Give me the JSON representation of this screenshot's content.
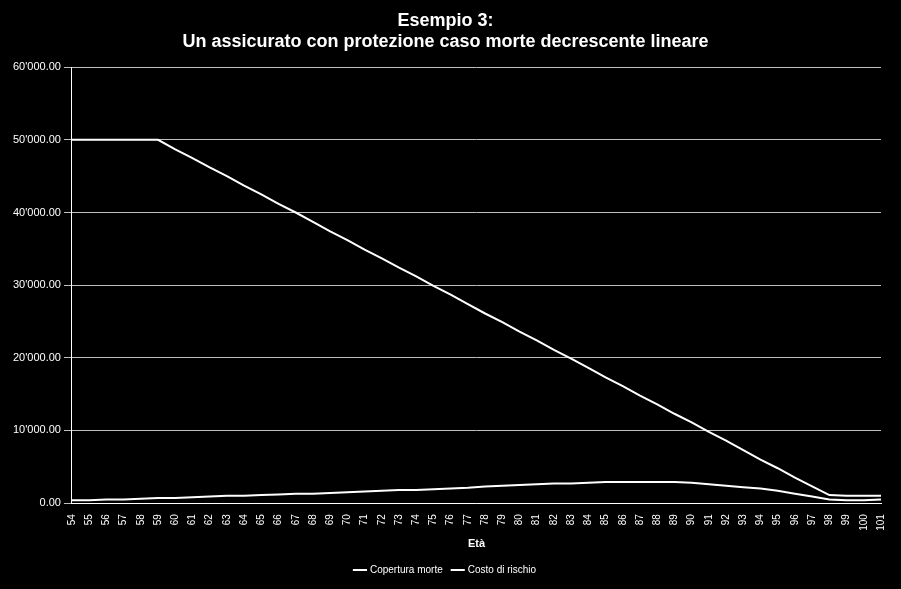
{
  "chart_data": {
    "type": "line",
    "title": [
      "Esempio 3:",
      "Un assicurato con protezione caso morte decrescente lineare"
    ],
    "x_label": "Età",
    "categories": [
      "54",
      "55",
      "56",
      "57",
      "58",
      "59",
      "60",
      "61",
      "62",
      "63",
      "64",
      "65",
      "66",
      "67",
      "68",
      "69",
      "70",
      "71",
      "72",
      "73",
      "74",
      "75",
      "76",
      "77",
      "78",
      "79",
      "80",
      "81",
      "82",
      "83",
      "84",
      "85",
      "86",
      "87",
      "88",
      "89",
      "90",
      "91",
      "92",
      "93",
      "94",
      "95",
      "96",
      "97",
      "98",
      "99",
      "100",
      "101"
    ],
    "series": [
      {
        "name": "Copertura morte",
        "color": "#ffffff",
        "values": [
          50000,
          50000,
          50000,
          50000,
          50000,
          50000,
          48700,
          47500,
          46200,
          45000,
          43700,
          42500,
          41200,
          40000,
          38700,
          37400,
          36200,
          34900,
          33700,
          32400,
          31200,
          29900,
          28700,
          27400,
          26100,
          24900,
          23600,
          22400,
          21100,
          19900,
          18600,
          17300,
          16100,
          14800,
          13600,
          12300,
          11100,
          9800,
          8600,
          7300,
          6000,
          4800,
          3500,
          2300,
          1100,
          1000,
          1000,
          1000
        ]
      },
      {
        "name": "Costo di rischio",
        "color": "#ffffff",
        "values": [
          400,
          400,
          500,
          500,
          600,
          700,
          700,
          800,
          900,
          1000,
          1000,
          1100,
          1200,
          1300,
          1300,
          1400,
          1500,
          1600,
          1700,
          1800,
          1800,
          1900,
          2000,
          2100,
          2300,
          2400,
          2500,
          2600,
          2700,
          2700,
          2800,
          2900,
          2900,
          2900,
          2900,
          2900,
          2800,
          2600,
          2400,
          2200,
          2000,
          1700,
          1300,
          900,
          500,
          400,
          400,
          500
        ]
      }
    ],
    "ylim": [
      0,
      60000
    ],
    "yticks": [
      {
        "value": 0,
        "label": "0.00"
      },
      {
        "value": 10000,
        "label": "10'000.00"
      },
      {
        "value": 20000,
        "label": "20'000.00"
      },
      {
        "value": 30000,
        "label": "30'000.00"
      },
      {
        "value": 40000,
        "label": "40'000.00"
      },
      {
        "value": 50000,
        "label": "50'000.00"
      },
      {
        "value": 60000,
        "label": "60'000.00"
      }
    ],
    "grid": true,
    "legend": "bottom"
  }
}
